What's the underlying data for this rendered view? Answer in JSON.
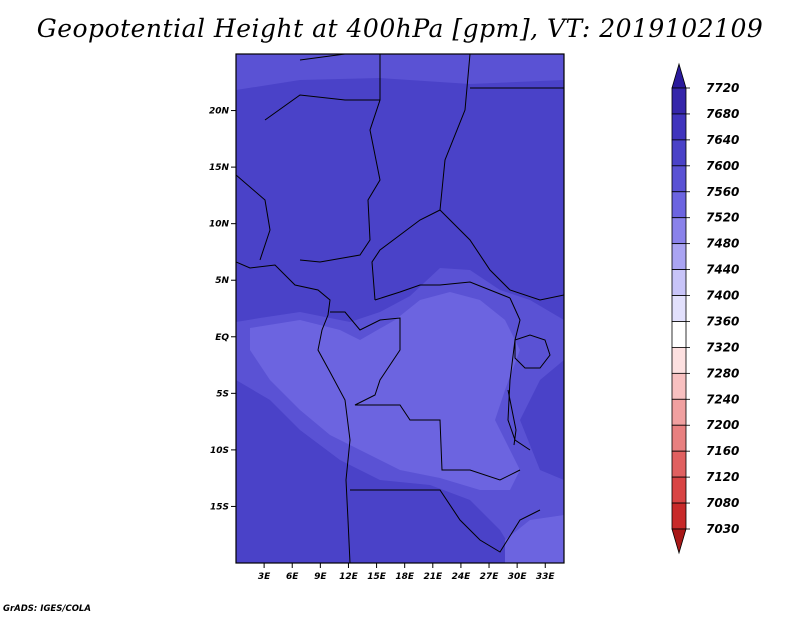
{
  "title": "Geopotential Height at 400hPa [gpm], VT: 2019102109",
  "credit": "GrADS: IGES/COLA",
  "map": {
    "lon_range": [
      0,
      35
    ],
    "lat_range": [
      -20,
      25
    ],
    "lat_ticks": [
      {
        "value": 20,
        "label": "20N"
      },
      {
        "value": 15,
        "label": "15N"
      },
      {
        "value": 10,
        "label": "10N"
      },
      {
        "value": 5,
        "label": "5N"
      },
      {
        "value": 0,
        "label": "EQ"
      },
      {
        "value": -5,
        "label": "5S"
      },
      {
        "value": -10,
        "label": "10S"
      },
      {
        "value": -15,
        "label": "15S"
      }
    ],
    "lon_ticks": [
      {
        "value": 3,
        "label": "3E"
      },
      {
        "value": 6,
        "label": "6E"
      },
      {
        "value": 9,
        "label": "9E"
      },
      {
        "value": 12,
        "label": "12E"
      },
      {
        "value": 15,
        "label": "15E"
      },
      {
        "value": 18,
        "label": "18E"
      },
      {
        "value": 21,
        "label": "21E"
      },
      {
        "value": 24,
        "label": "24E"
      },
      {
        "value": 27,
        "label": "27E"
      },
      {
        "value": 30,
        "label": "30E"
      },
      {
        "value": 33,
        "label": "33E"
      }
    ]
  },
  "colorbar": {
    "levels": [
      "7720",
      "7680",
      "7640",
      "7600",
      "7560",
      "7520",
      "7480",
      "7440",
      "7400",
      "7360",
      "7320",
      "7280",
      "7240",
      "7200",
      "7160",
      "7120",
      "7080",
      "7030"
    ],
    "colors": [
      "#2a1a9c",
      "#3526aa",
      "#4034bd",
      "#4a42c8",
      "#5a52d4",
      "#6c64e0",
      "#8a82ea",
      "#aaa4f2",
      "#c8c4f8",
      "#e2e0fc",
      "#ffffff",
      "#fde0e0",
      "#f8c0c0",
      "#f0a0a0",
      "#e88080",
      "#e06060",
      "#d84444",
      "#c82a2a",
      "#a81818"
    ]
  },
  "field_colors": {
    "c7600": "#4a42c8",
    "c7560": "#5a52d4",
    "c7520": "#6c64e0"
  }
}
